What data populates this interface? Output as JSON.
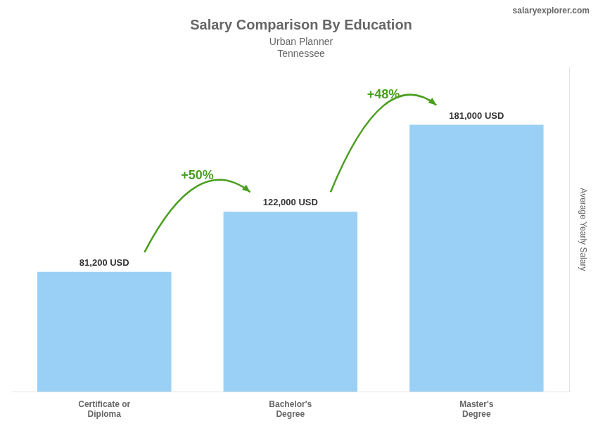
{
  "chart_data": {
    "type": "bar",
    "title": "Salary Comparison By Education",
    "subtitle": [
      "Urban Planner",
      "Tennessee"
    ],
    "source": "salaryexplorer.com",
    "categories": [
      "Certificate or\nDiploma",
      "Bachelor's\nDegree",
      "Master's\nDegree"
    ],
    "values": [
      81200,
      122000,
      181000
    ],
    "value_labels": [
      "81,200 USD",
      "122,000 USD",
      "181,000 USD"
    ],
    "data_labels": true,
    "annotations": [
      "+50%",
      "+48%"
    ],
    "ylabel": "Average Yearly Salary",
    "ylim": [
      0,
      220000
    ],
    "tick_labels": "x",
    "grid": false
  }
}
